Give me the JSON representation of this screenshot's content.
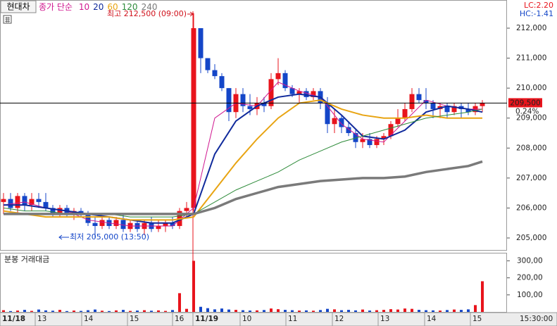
{
  "header": {
    "stock": "현대차",
    "lc": "LC:2.20",
    "hc": "HC:-1.41"
  },
  "chart_data": [
    {
      "type": "candlestick",
      "ylim": [
        204600,
        212940
      ],
      "yticks": [
        {
          "value": 212000,
          "label": "212,000"
        },
        {
          "value": 211000,
          "label": "211,000"
        },
        {
          "value": 210000,
          "label": "210,000"
        },
        {
          "value": 209000,
          "label": "209,000"
        },
        {
          "value": 208000,
          "label": "208,000"
        },
        {
          "value": 207000,
          "label": "207,000"
        },
        {
          "value": 206000,
          "label": "206,000"
        },
        {
          "value": 205000,
          "label": "205,000"
        }
      ],
      "up_color": "#e8141c",
      "down_color": "#1446c8",
      "open": [
        206200,
        206300,
        206000,
        206400,
        206100,
        206300,
        206200,
        206000,
        205800,
        206000,
        205800,
        205900,
        205800,
        205500,
        205400,
        205600,
        205400,
        205600,
        205300,
        205500,
        205300,
        205500,
        205300,
        205400,
        205500,
        205400,
        205900,
        206000,
        212000,
        211000,
        210600,
        210400,
        210000,
        209200,
        209800,
        209400,
        209300,
        209500,
        209400,
        210300,
        210500,
        210000,
        209800,
        209900,
        209700,
        209900,
        209500,
        208800,
        209000,
        208700,
        208500,
        208200,
        208300,
        208100,
        208300,
        208400,
        208800,
        209000,
        209300,
        209800,
        209600,
        209500,
        209300,
        209400,
        209200,
        209400,
        209300,
        209200,
        209400
      ],
      "high": [
        206500,
        206500,
        206500,
        206500,
        206500,
        206500,
        206500,
        206100,
        206100,
        206100,
        206000,
        206000,
        205900,
        205700,
        205700,
        205700,
        205700,
        205800,
        205600,
        205600,
        205600,
        205700,
        205600,
        205600,
        205700,
        206000,
        206200,
        212500,
        212000,
        211000,
        210800,
        210500,
        210000,
        210000,
        210000,
        209800,
        209700,
        209700,
        210500,
        211000,
        210600,
        210100,
        210000,
        210000,
        210000,
        210000,
        209700,
        209300,
        209100,
        208900,
        208600,
        208500,
        208500,
        208400,
        208500,
        208900,
        209300,
        209500,
        210000,
        210000,
        210000,
        209600,
        209500,
        209500,
        209500,
        209500,
        209500,
        209500,
        209600
      ],
      "low": [
        205800,
        205900,
        205800,
        205900,
        205900,
        206000,
        205900,
        205700,
        205700,
        205700,
        205600,
        205700,
        205400,
        205000,
        205300,
        205300,
        205300,
        205200,
        205200,
        205200,
        205100,
        205200,
        205200,
        205200,
        205300,
        205300,
        205700,
        205900,
        210500,
        210500,
        210300,
        209900,
        208900,
        209000,
        209200,
        209100,
        209100,
        209200,
        209300,
        210100,
        209900,
        209700,
        209500,
        209600,
        209600,
        209300,
        208500,
        208500,
        208500,
        208400,
        208000,
        208000,
        208000,
        208000,
        208100,
        208300,
        208700,
        208900,
        209200,
        209500,
        209300,
        209000,
        209000,
        209000,
        209100,
        209000,
        209100,
        209100,
        209200
      ],
      "close": [
        206300,
        206000,
        206400,
        206100,
        206300,
        206200,
        206000,
        205800,
        206000,
        205800,
        205900,
        205800,
        205500,
        205400,
        205600,
        205400,
        205600,
        205300,
        205500,
        205300,
        205500,
        205300,
        205400,
        205500,
        205400,
        205900,
        206000,
        212000,
        211000,
        210600,
        210400,
        210000,
        209200,
        209800,
        209400,
        209300,
        209500,
        209400,
        210300,
        210500,
        210000,
        209800,
        209900,
        209700,
        209900,
        209500,
        208800,
        209000,
        208700,
        208500,
        208200,
        208300,
        208100,
        208300,
        208400,
        208800,
        209000,
        209300,
        209800,
        209600,
        209500,
        209300,
        209400,
        209200,
        209400,
        209300,
        209200,
        209400,
        209500
      ],
      "ma_label": "종가 단순",
      "line_x": [
        0,
        3,
        6,
        9,
        12,
        15,
        18,
        21,
        24,
        27,
        30,
        33,
        36,
        39,
        42,
        45,
        48,
        51,
        54,
        57,
        60,
        63,
        66,
        68
      ],
      "lines": [
        {
          "name": "10",
          "color": "#d01890",
          "width": 1,
          "values": [
            206100,
            206200,
            206000,
            205900,
            205600,
            205500,
            205400,
            205400,
            205400,
            206000,
            209000,
            209500,
            209400,
            210200,
            209900,
            209700,
            208800,
            208300,
            208200,
            208900,
            209600,
            209400,
            209300,
            209300
          ]
        },
        {
          "name": "20",
          "color": "#102a9c",
          "width": 2,
          "values": [
            206100,
            206100,
            206000,
            205900,
            205800,
            205700,
            205600,
            205500,
            205500,
            205800,
            207800,
            208900,
            209400,
            209700,
            209800,
            209700,
            209100,
            208400,
            208300,
            208600,
            209200,
            209400,
            209300,
            209200
          ]
        },
        {
          "name": "60",
          "color": "#e8a412",
          "width": 2,
          "values": [
            205900,
            205800,
            205700,
            205700,
            205700,
            205700,
            205600,
            205600,
            205600,
            205700,
            206600,
            207500,
            208300,
            209000,
            209500,
            209600,
            209300,
            209100,
            209000,
            209000,
            209100,
            209000,
            209000,
            209000
          ]
        },
        {
          "name": "120",
          "color": "#2e8b3a",
          "width": 1,
          "values": [
            206000,
            205900,
            205900,
            205800,
            205800,
            205800,
            205700,
            205700,
            205700,
            205800,
            206200,
            206600,
            206900,
            207200,
            207600,
            207900,
            208200,
            208400,
            208600,
            208800,
            209000,
            209100,
            209200,
            209300
          ]
        },
        {
          "name": "240",
          "color": "#7a7a7a",
          "width": 3.5,
          "values": [
            205800,
            205800,
            205800,
            205800,
            205800,
            205800,
            205800,
            205800,
            205800,
            205800,
            206000,
            206300,
            206500,
            206700,
            206800,
            206900,
            206950,
            207000,
            207000,
            207050,
            207200,
            207300,
            207400,
            207550
          ]
        }
      ],
      "max_annotation": "최고 212,500 (09:00)",
      "min_annotation": "최저 205,000 (13:50)",
      "last_price": {
        "value": 209500,
        "label": "209,500"
      },
      "change": "0.24%"
    },
    {
      "type": "bar",
      "title": "분봉 거래대금",
      "ylim": [
        0,
        343
      ],
      "yticks": [
        {
          "value": 300,
          "label": "300,00"
        },
        {
          "value": 200,
          "label": "200,00"
        },
        {
          "value": 100,
          "label": "100,00"
        }
      ],
      "values": [
        10,
        5,
        8,
        12,
        6,
        14,
        9,
        7,
        12,
        5,
        8,
        6,
        10,
        14,
        7,
        5,
        9,
        12,
        6,
        8,
        10,
        7,
        9,
        6,
        11,
        110,
        18,
        300,
        30,
        22,
        15,
        20,
        14,
        12,
        10,
        8,
        9,
        11,
        20,
        16,
        12,
        10,
        8,
        9,
        7,
        11,
        18,
        15,
        10,
        12,
        9,
        14,
        8,
        10,
        12,
        16,
        14,
        20,
        18,
        12,
        10,
        9,
        8,
        11,
        14,
        12,
        15,
        40,
        180
      ],
      "xticks": [
        {
          "value": 0,
          "label": "11/18"
        },
        {
          "value": 5,
          "label": "13"
        },
        {
          "value": 11.6,
          "label": "14"
        },
        {
          "value": 18.1,
          "label": "15"
        },
        {
          "value": 24.5,
          "label": "16"
        },
        {
          "value": 27.4,
          "label": "11/19"
        },
        {
          "value": 34.1,
          "label": "10"
        },
        {
          "value": 40.6,
          "label": "11"
        },
        {
          "value": 47.2,
          "label": "12"
        },
        {
          "value": 53.7,
          "label": "13"
        },
        {
          "value": 60.3,
          "label": "14"
        },
        {
          "value": 66.8,
          "label": "15"
        }
      ],
      "time_label": "15:30:00"
    }
  ]
}
